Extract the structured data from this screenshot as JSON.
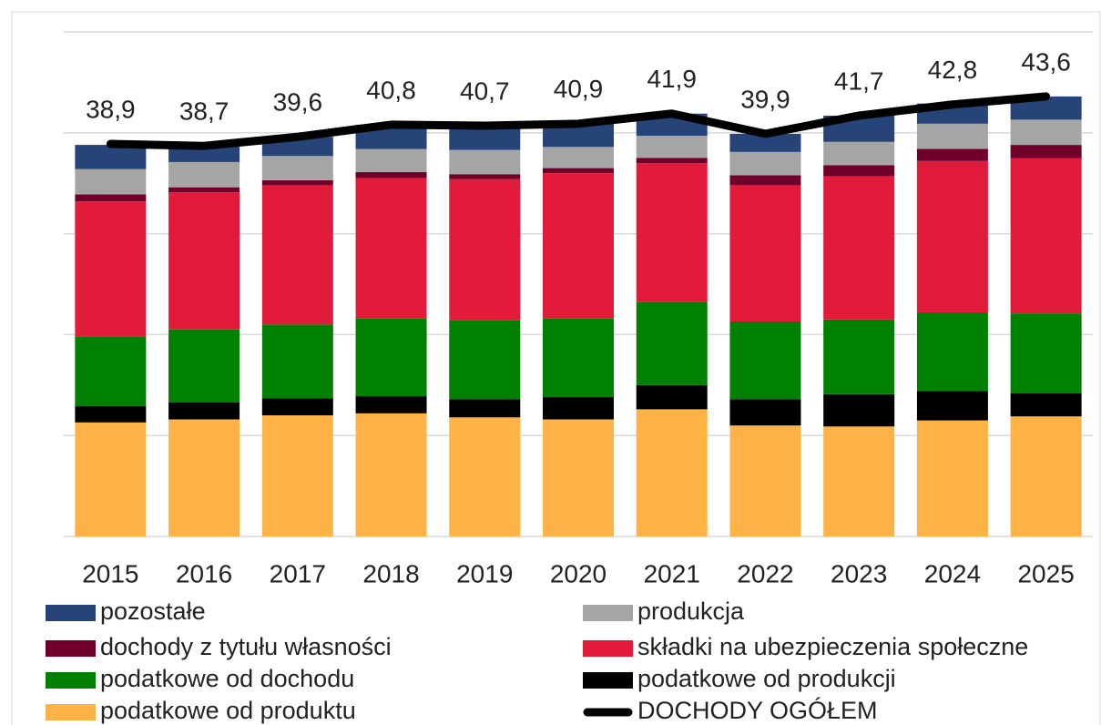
{
  "chart_data": {
    "type": "stacked_bar_line",
    "categories": [
      "2015",
      "2016",
      "2017",
      "2018",
      "2019",
      "2020",
      "2021",
      "2022",
      "2023",
      "2024",
      "2025"
    ],
    "ylim": [
      0,
      50
    ],
    "yticks": [
      0,
      10,
      20,
      30,
      40,
      50
    ],
    "grid": true,
    "series": [
      {
        "name": "pozostałe",
        "color": "#264478",
        "values": [
          2.4,
          1.6,
          1.9,
          2.4,
          2.4,
          2.3,
          2.2,
          1.8,
          2.6,
          2.0,
          2.3
        ]
      },
      {
        "name": "produkcja",
        "color": "#a5a5a5",
        "values": [
          2.5,
          2.5,
          2.4,
          2.3,
          2.4,
          2.1,
          2.2,
          2.3,
          2.3,
          2.5,
          2.5
        ]
      },
      {
        "name": "dochody z tytułu własności",
        "color": "#70002a",
        "values": [
          0.7,
          0.5,
          0.5,
          0.6,
          0.5,
          0.5,
          0.5,
          1.0,
          1.1,
          1.2,
          1.3
        ]
      },
      {
        "name": "składki na ubezpieczenia społeczne",
        "color": "#e31b3b",
        "values": [
          13.4,
          13.6,
          13.8,
          13.9,
          14.0,
          14.4,
          13.8,
          13.5,
          14.2,
          15.0,
          15.4
        ]
      },
      {
        "name": "podatkowe od dochodu",
        "color": "#008000",
        "values": [
          6.9,
          7.2,
          7.3,
          7.7,
          7.8,
          7.8,
          8.2,
          7.7,
          7.4,
          7.8,
          7.9
        ]
      },
      {
        "name": "podatkowe od produkcji",
        "color": "#000000",
        "values": [
          1.6,
          1.7,
          1.7,
          1.7,
          1.8,
          2.2,
          2.4,
          2.6,
          3.2,
          2.9,
          2.3
        ]
      },
      {
        "name": "podatkowe od produktu",
        "color": "#ffb347",
        "values": [
          11.3,
          11.6,
          12.0,
          12.2,
          11.8,
          11.6,
          12.6,
          11.0,
          10.9,
          11.5,
          11.9
        ]
      },
      {
        "name": "DOCHODY OGÓŁEM",
        "color": "#000000",
        "type": "line",
        "values": [
          38.9,
          38.7,
          39.6,
          40.8,
          40.7,
          40.9,
          41.9,
          39.9,
          41.7,
          42.8,
          43.6
        ],
        "value_labels": [
          "38,9",
          "38,7",
          "39,6",
          "40,8",
          "40,7",
          "40,9",
          "41,9",
          "39,9",
          "41,7",
          "42,8",
          "43,6"
        ]
      }
    ]
  }
}
